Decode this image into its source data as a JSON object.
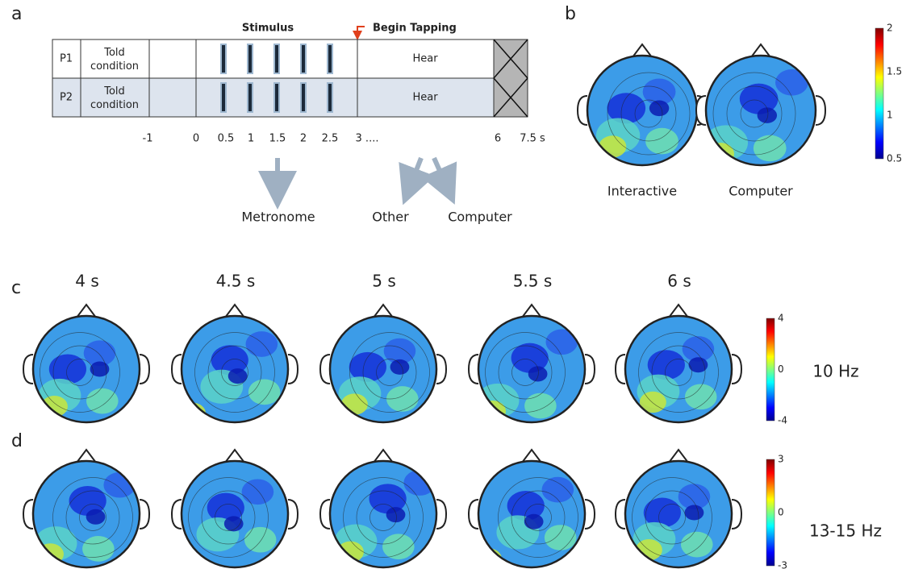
{
  "panel_a": {
    "label": "a",
    "stimulus": "Stimulus",
    "begin_tapping": "Begin Tapping",
    "rows": [
      {
        "id": "P1",
        "condition": "Told condition",
        "phase": "Hear"
      },
      {
        "id": "P2",
        "condition": "Told condition",
        "phase": "Hear"
      }
    ],
    "time_ticks": [
      "-1",
      "0",
      "0.5",
      "1",
      "1.5",
      "2",
      "2.5",
      "3 ....",
      "6",
      "7.5 s"
    ],
    "outcomes": [
      "Metronome",
      "Other",
      "Computer"
    ]
  },
  "panel_b": {
    "label": "b",
    "maps": [
      "Interactive",
      "Computer"
    ],
    "colorbar_ticks": [
      "2",
      "1.5",
      "1",
      "0.5"
    ]
  },
  "panel_c": {
    "label": "c",
    "times": [
      "4 s",
      "4.5 s",
      "5 s",
      "5.5 s",
      "6 s"
    ],
    "band": "10 Hz",
    "colorbar_ticks": [
      "4",
      "0",
      "-4"
    ]
  },
  "panel_d": {
    "label": "d",
    "band": "13-15 Hz",
    "colorbar_ticks": [
      "3",
      "0",
      "-3"
    ]
  }
}
